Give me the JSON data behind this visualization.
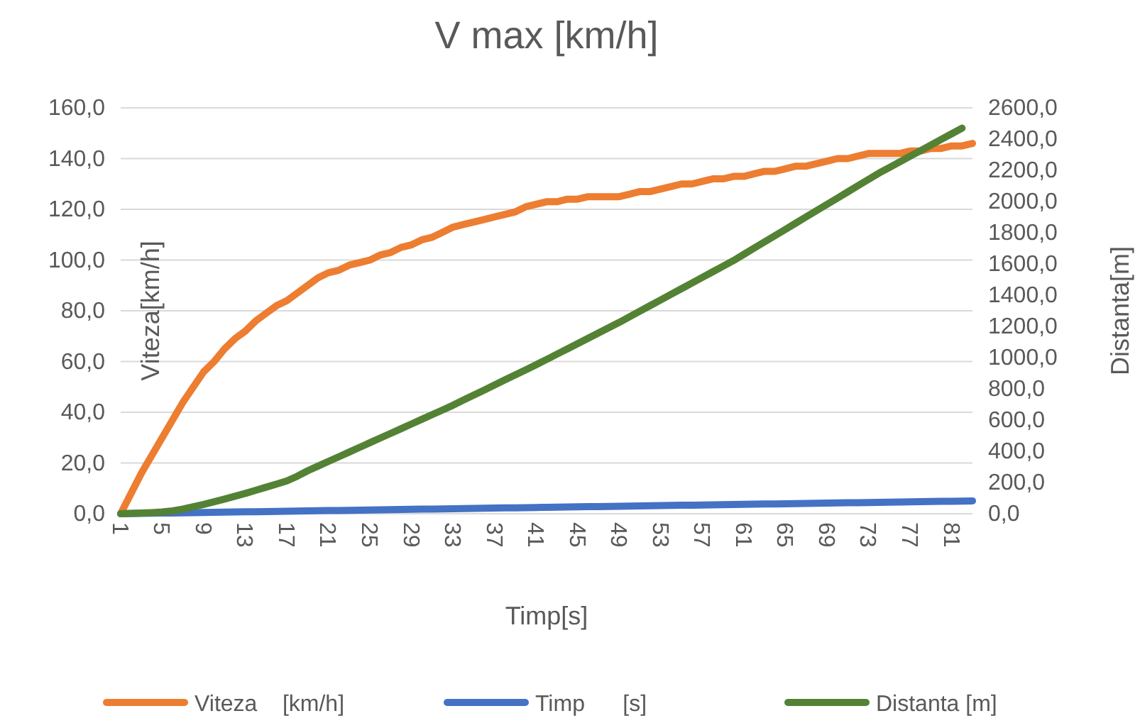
{
  "chart_data": {
    "type": "line",
    "title": "V max [km/h]",
    "xlabel": "Timp[s]",
    "ylabel": "Viteza[km/h]",
    "y2label": "Distanta[m]",
    "categories": [
      "1",
      null,
      null,
      null,
      "5",
      null,
      null,
      null,
      "9",
      null,
      null,
      null,
      "13",
      null,
      null,
      null,
      "17",
      null,
      null,
      null,
      "21",
      null,
      null,
      null,
      "25",
      null,
      null,
      null,
      "29",
      null,
      null,
      null,
      "33",
      null,
      null,
      null,
      "37",
      null,
      null,
      null,
      "41",
      null,
      null,
      null,
      "45",
      null,
      null,
      null,
      "49",
      null,
      null,
      null,
      "53",
      null,
      null,
      null,
      "57",
      null,
      null,
      null,
      "61",
      null,
      null,
      null,
      "65",
      null,
      null,
      null,
      "69",
      null,
      null,
      null,
      "73",
      null,
      null,
      null,
      "77",
      null,
      null,
      null,
      "81",
      null,
      null
    ],
    "series": [
      {
        "name": "Viteza    [km/h]",
        "color": "#ed7d31",
        "values": [
          0,
          8,
          16,
          23,
          30,
          37,
          44,
          50,
          56,
          60,
          65,
          69,
          72,
          76,
          79,
          82,
          84,
          87,
          90,
          93,
          95,
          96,
          98,
          99,
          100,
          102,
          103,
          105,
          106,
          108,
          109,
          111,
          113,
          114,
          115,
          116,
          117,
          118,
          119,
          121,
          122,
          123,
          123,
          124,
          124,
          125,
          125,
          125,
          125,
          126,
          127,
          127,
          128,
          129,
          130,
          130,
          131,
          132,
          132,
          133,
          133,
          134,
          135,
          135,
          136,
          137,
          137,
          138,
          139,
          140,
          140,
          141,
          142,
          142,
          142,
          142,
          143,
          143,
          144,
          144,
          145,
          145,
          146
        ]
      },
      {
        "name": "Timp      [s]",
        "color": "#4472c4",
        "axis": "y2",
        "values": [
          0,
          1,
          2,
          3,
          4,
          5,
          6,
          7,
          8,
          9,
          10,
          11,
          12,
          13,
          14,
          15,
          16,
          17,
          18,
          19,
          20,
          21,
          22,
          23,
          24,
          25,
          26,
          27,
          28,
          29,
          30,
          31,
          32,
          33,
          34,
          35,
          36,
          37,
          38,
          39,
          40,
          41,
          42,
          43,
          44,
          45,
          46,
          47,
          48,
          49,
          50,
          51,
          52,
          53,
          54,
          55,
          56,
          57,
          58,
          59,
          60,
          61,
          62,
          63,
          64,
          65,
          66,
          67,
          68,
          69,
          70,
          71,
          72,
          73,
          74,
          75,
          76,
          77,
          78,
          79,
          80,
          81,
          82
        ]
      },
      {
        "name": "Distanta [m]",
        "color": "#548235",
        "axis": "y2",
        "values": [
          0,
          2,
          4,
          7,
          11,
          18,
          30,
          45,
          60,
          77,
          94,
          112,
          130,
          150,
          170,
          190,
          210,
          240,
          275,
          305,
          335,
          365,
          395,
          425,
          455,
          485,
          515,
          545,
          575,
          605,
          635,
          665,
          695,
          728,
          760,
          792,
          825,
          858,
          890,
          922,
          955,
          988,
          1022,
          1056,
          1090,
          1124,
          1158,
          1192,
          1226,
          1262,
          1298,
          1334,
          1370,
          1406,
          1442,
          1478,
          1514,
          1550,
          1586,
          1622,
          1662,
          1702,
          1742,
          1782,
          1822,
          1862,
          1902,
          1942,
          1982,
          2022,
          2062,
          2102,
          2142,
          2182,
          2218,
          2254,
          2290,
          2326,
          2362,
          2398,
          2434,
          2470,
          null
        ]
      }
    ],
    "ylim": [
      0,
      160
    ],
    "yticks": [
      {
        "value": 0,
        "label": "0,0"
      },
      {
        "value": 20,
        "label": "20,0"
      },
      {
        "value": 40,
        "label": "40,0"
      },
      {
        "value": 60,
        "label": "60,0"
      },
      {
        "value": 80,
        "label": "80,0"
      },
      {
        "value": 100,
        "label": "100,0"
      },
      {
        "value": 120,
        "label": "120,0"
      },
      {
        "value": 140,
        "label": "140,0"
      },
      {
        "value": 160,
        "label": "160,0"
      }
    ],
    "y2lim": [
      0,
      2600
    ],
    "y2ticks": [
      {
        "value": 0,
        "label": "0,0"
      },
      {
        "value": 200,
        "label": "200,0"
      },
      {
        "value": 400,
        "label": "400,0"
      },
      {
        "value": 600,
        "label": "600,0"
      },
      {
        "value": 800,
        "label": "800,0"
      },
      {
        "value": 1000,
        "label": "1000,0"
      },
      {
        "value": 1200,
        "label": "1200,0"
      },
      {
        "value": 1400,
        "label": "1400,0"
      },
      {
        "value": 1600,
        "label": "1600,0"
      },
      {
        "value": 1800,
        "label": "1800,0"
      },
      {
        "value": 2000,
        "label": "2000,0"
      },
      {
        "value": 2200,
        "label": "2200,0"
      },
      {
        "value": 2400,
        "label": "2400,0"
      },
      {
        "value": 2600,
        "label": "2600,0"
      }
    ],
    "grid": "y",
    "legend": "bottom",
    "marker": "none",
    "line_style": "solid"
  }
}
